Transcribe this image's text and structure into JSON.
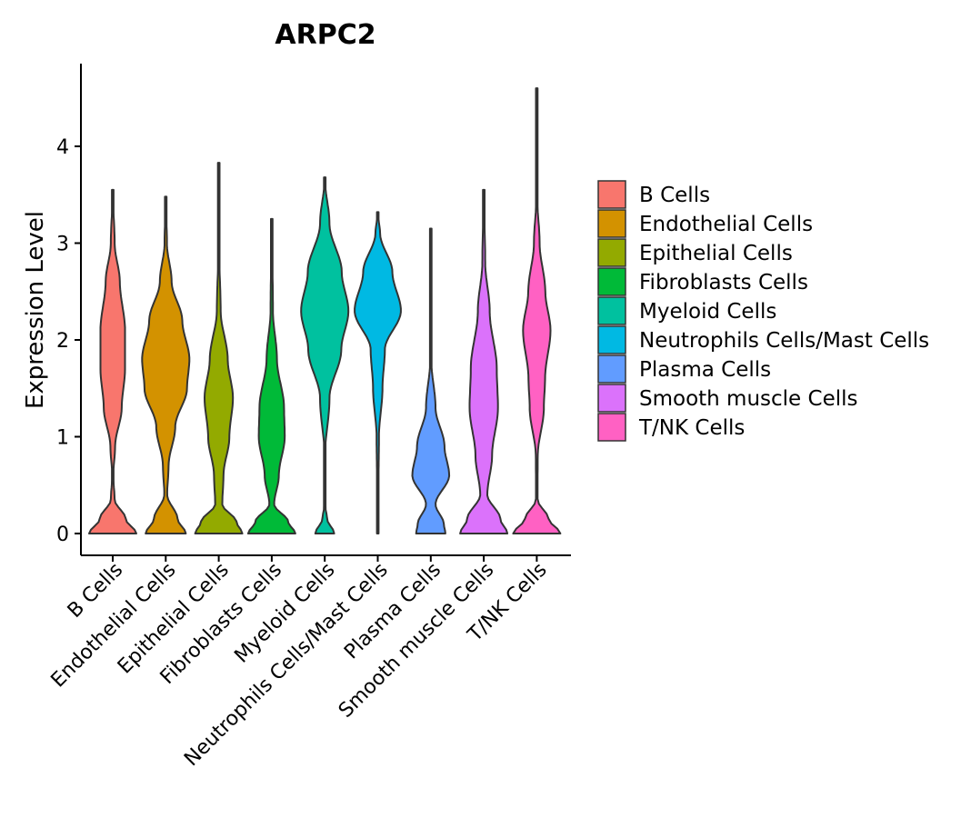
{
  "chart_data": {
    "type": "violin",
    "title": "ARPC2",
    "xlabel": "",
    "ylabel": "Expression Level",
    "ylim": [
      -0.22,
      5.05
    ],
    "yticks": [
      "0",
      "1",
      "2",
      "3",
      "4"
    ],
    "grid": false,
    "legend_position": "right",
    "categories": [
      "B Cells",
      "Endothelial Cells",
      "Epithelial Cells",
      "Fibroblasts Cells",
      "Myeloid Cells",
      "Neutrophils Cells/Mast Cells",
      "Plasma Cells",
      "Smooth muscle Cells",
      "T/NK Cells"
    ],
    "colors": [
      "#F8766D",
      "#D39200",
      "#93AA00",
      "#00BA38",
      "#00C19F",
      "#00B9E3",
      "#619CFF",
      "#DB72FB",
      "#FF61C3"
    ],
    "violins": [
      {
        "max": 3.55,
        "profile": [
          [
            0,
            1
          ],
          [
            0.15,
            0.55
          ],
          [
            0.35,
            0.08
          ],
          [
            0.6,
            0.02
          ],
          [
            0.9,
            0.1
          ],
          [
            1.3,
            0.38
          ],
          [
            1.7,
            0.52
          ],
          [
            2.1,
            0.52
          ],
          [
            2.6,
            0.3
          ],
          [
            3.0,
            0.08
          ],
          [
            3.55,
            0
          ]
        ]
      },
      {
        "max": 3.48,
        "profile": [
          [
            0,
            0.85
          ],
          [
            0.15,
            0.5
          ],
          [
            0.4,
            0.06
          ],
          [
            0.7,
            0.12
          ],
          [
            1.1,
            0.4
          ],
          [
            1.5,
            0.9
          ],
          [
            1.8,
            1
          ],
          [
            2.2,
            0.7
          ],
          [
            2.6,
            0.25
          ],
          [
            3.0,
            0.05
          ],
          [
            3.48,
            0
          ]
        ]
      },
      {
        "max": 3.83,
        "profile": [
          [
            0,
            1
          ],
          [
            0.12,
            0.75
          ],
          [
            0.3,
            0.15
          ],
          [
            0.6,
            0.2
          ],
          [
            1.0,
            0.45
          ],
          [
            1.4,
            0.6
          ],
          [
            1.8,
            0.38
          ],
          [
            2.3,
            0.08
          ],
          [
            3.0,
            0.01
          ],
          [
            3.83,
            0
          ]
        ]
      },
      {
        "max": 3.25,
        "profile": [
          [
            0,
            1
          ],
          [
            0.12,
            0.7
          ],
          [
            0.3,
            0.1
          ],
          [
            0.6,
            0.3
          ],
          [
            1.0,
            0.55
          ],
          [
            1.3,
            0.52
          ],
          [
            1.8,
            0.22
          ],
          [
            2.3,
            0.05
          ],
          [
            3.25,
            0
          ]
        ]
      },
      {
        "max": 3.68,
        "profile": [
          [
            0,
            0.4
          ],
          [
            0.15,
            0.1
          ],
          [
            0.3,
            0.01
          ],
          [
            0.8,
            0.01
          ],
          [
            1.4,
            0.2
          ],
          [
            1.9,
            0.7
          ],
          [
            2.3,
            1
          ],
          [
            2.7,
            0.72
          ],
          [
            3.2,
            0.2
          ],
          [
            3.68,
            0
          ]
        ]
      },
      {
        "max": 3.32,
        "profile": [
          [
            0,
            0.03
          ],
          [
            0.5,
            0.03
          ],
          [
            1.0,
            0.05
          ],
          [
            1.5,
            0.2
          ],
          [
            1.9,
            0.3
          ],
          [
            2.3,
            0.98
          ],
          [
            2.7,
            0.62
          ],
          [
            3.1,
            0.1
          ],
          [
            3.32,
            0
          ]
        ]
      },
      {
        "max": 3.15,
        "profile": [
          [
            0,
            0.62
          ],
          [
            0.1,
            0.55
          ],
          [
            0.3,
            0.2
          ],
          [
            0.6,
            0.78
          ],
          [
            0.9,
            0.58
          ],
          [
            1.3,
            0.2
          ],
          [
            1.8,
            0.02
          ],
          [
            3.15,
            0
          ]
        ]
      },
      {
        "max": 3.55,
        "profile": [
          [
            0,
            1
          ],
          [
            0.15,
            0.7
          ],
          [
            0.4,
            0.15
          ],
          [
            0.8,
            0.35
          ],
          [
            1.3,
            0.6
          ],
          [
            1.7,
            0.55
          ],
          [
            2.3,
            0.25
          ],
          [
            2.8,
            0.06
          ],
          [
            3.55,
            0
          ]
        ]
      },
      {
        "max": 4.6,
        "profile": [
          [
            0,
            1
          ],
          [
            0.15,
            0.5
          ],
          [
            0.35,
            0.03
          ],
          [
            0.8,
            0.04
          ],
          [
            1.3,
            0.3
          ],
          [
            1.6,
            0.35
          ],
          [
            2.1,
            0.58
          ],
          [
            2.5,
            0.36
          ],
          [
            3.0,
            0.12
          ],
          [
            3.5,
            0.01
          ],
          [
            4.6,
            0
          ]
        ]
      }
    ]
  }
}
